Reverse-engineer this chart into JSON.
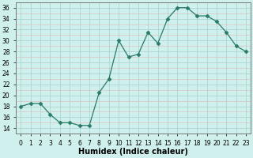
{
  "x": [
    0,
    1,
    2,
    3,
    4,
    5,
    6,
    7,
    8,
    9,
    10,
    11,
    12,
    13,
    14,
    15,
    16,
    17,
    18,
    19,
    20,
    21,
    22,
    23
  ],
  "y": [
    18,
    18.5,
    18.5,
    16.5,
    15,
    15,
    14.5,
    14.5,
    20.5,
    23,
    30,
    27,
    27.5,
    31.5,
    29.5,
    34,
    36,
    36,
    34.5,
    34.5,
    33.5,
    31.5,
    29,
    28
  ],
  "xlabel": "Humidex (Indice chaleur)",
  "ylim": [
    13,
    37
  ],
  "xlim": [
    -0.5,
    23.5
  ],
  "yticks": [
    14,
    16,
    18,
    20,
    22,
    24,
    26,
    28,
    30,
    32,
    34,
    36
  ],
  "xticks": [
    0,
    1,
    2,
    3,
    4,
    5,
    6,
    7,
    8,
    9,
    10,
    11,
    12,
    13,
    14,
    15,
    16,
    17,
    18,
    19,
    20,
    21,
    22,
    23
  ],
  "xtick_labels": [
    "0",
    "1",
    "2",
    "3",
    "4",
    "5",
    "6",
    "7",
    "8",
    "9",
    "10",
    "11",
    "12",
    "13",
    "14",
    "15",
    "16",
    "17",
    "18",
    "19",
    "20",
    "21",
    "22",
    "23"
  ],
  "line_color": "#2a7a68",
  "marker": "D",
  "marker_size": 2.5,
  "bg_color": "#cff0ec",
  "major_grid_color": "#aad8d0",
  "minor_grid_color": "#e0b8b8",
  "spine_color": "#777777",
  "tick_fontsize": 5.5,
  "xlabel_fontsize": 7
}
